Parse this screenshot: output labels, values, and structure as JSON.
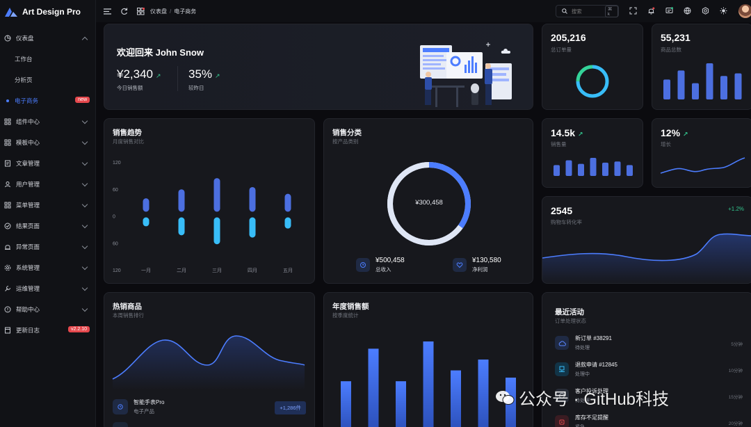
{
  "app": {
    "name": "Art Design Pro"
  },
  "sidebar": {
    "items": [
      {
        "label": "仪表盘",
        "icon": "dashboard-icon"
      },
      {
        "label": "工作台"
      },
      {
        "label": "分析页"
      },
      {
        "label": "电子商务",
        "badge": "new"
      },
      {
        "label": "组件中心",
        "icon": "components-icon"
      },
      {
        "label": "模板中心",
        "icon": "template-icon"
      },
      {
        "label": "文章管理",
        "icon": "article-icon"
      },
      {
        "label": "用户管理",
        "icon": "user-icon"
      },
      {
        "label": "菜单管理",
        "icon": "menu-icon"
      },
      {
        "label": "结果页面",
        "icon": "result-icon"
      },
      {
        "label": "异常页面",
        "icon": "warning-icon"
      },
      {
        "label": "系统管理",
        "icon": "settings-icon"
      },
      {
        "label": "运维管理",
        "icon": "wrench-icon"
      },
      {
        "label": "帮助中心",
        "icon": "help-icon"
      },
      {
        "label": "更新日志",
        "icon": "log-icon",
        "badge": "v2.2.10"
      }
    ]
  },
  "topbar": {
    "breadcrumb": [
      "仪表盘",
      "电子商务"
    ],
    "search": {
      "placeholder": "搜索",
      "shortcut": "⌘ k"
    }
  },
  "welcome": {
    "greeting": "欢迎回来 John Snow",
    "stats": [
      {
        "value": "¥2,340",
        "label": "今日销售额"
      },
      {
        "value": "35%",
        "label": "较昨日"
      }
    ]
  },
  "kpis": {
    "orders": {
      "value": "205,216",
      "label": "总订单量"
    },
    "products": {
      "value": "55,231",
      "label": "商品总数"
    },
    "sales": {
      "value": "14.5k",
      "label": "销售量"
    },
    "growth": {
      "value": "12%",
      "label": "增长"
    },
    "cart": {
      "value": "2545",
      "label": "购物车转化率",
      "change": "+1.2%"
    }
  },
  "sales_trend": {
    "title": "销售趋势",
    "subtitle": "月度销售对比"
  },
  "category": {
    "title": "销售分类",
    "subtitle": "按产品类别",
    "center": "¥300,458",
    "items": [
      {
        "value": "¥500,458",
        "label": "总收入"
      },
      {
        "value": "¥130,580",
        "label": "净利润"
      }
    ]
  },
  "hot": {
    "title": "热销商品",
    "subtitle": "本周销售排行",
    "products": [
      {
        "name": "智能手表Pro",
        "category": "电子产品",
        "sold": "+1,286件"
      }
    ]
  },
  "annual": {
    "title": "年度销售额",
    "subtitle": "按季度统计"
  },
  "activity": {
    "title": "最近活动",
    "subtitle": "订单处理状态",
    "items": [
      {
        "title": "新订单 #38291",
        "status": "待处理",
        "time": "5分钟"
      },
      {
        "title": "退款申请 #12845",
        "status": "处理中",
        "time": "10分钟"
      },
      {
        "title": "客户投诉处理",
        "status": "待处理",
        "time": "15分钟"
      },
      {
        "title": "库存不足提醒",
        "status": "紧急",
        "time": "20分钟"
      }
    ]
  },
  "watermark": "公众号 · GitHub科技",
  "colors": {
    "accent": "#4c7dff",
    "cyan": "#38bdf8",
    "success": "#33c48d",
    "danger": "#e5484d"
  },
  "chart_data": [
    {
      "type": "bar",
      "title": "销售趋势",
      "categories": [
        "一月",
        "二月",
        "三月",
        "四月",
        "五月"
      ],
      "ylim": [
        -120,
        120
      ],
      "yticks": [
        "120",
        "60",
        "0",
        "60",
        "120"
      ],
      "series": [
        {
          "values": [
            30,
            50,
            75,
            55,
            40
          ]
        },
        {
          "values": [
            -20,
            -40,
            -60,
            -45,
            -25
          ]
        }
      ]
    },
    {
      "type": "pie",
      "title": "销售分类",
      "series": [
        {
          "values": [
            35,
            65
          ]
        }
      ]
    },
    {
      "type": "bar",
      "title": "年度销售额",
      "series": [
        {
          "values": [
            56,
            92,
            56,
            100,
            68,
            80,
            60
          ]
        }
      ]
    },
    {
      "type": "bar",
      "title": "商品总数",
      "series": [
        {
          "values": [
            55,
            80,
            45,
            100,
            65,
            72
          ]
        }
      ]
    },
    {
      "type": "bar",
      "title": "销售量",
      "series": [
        {
          "values": [
            45,
            65,
            50,
            75,
            55,
            60,
            45
          ]
        }
      ]
    },
    {
      "type": "pie",
      "title": "总订单量",
      "series": [
        {
          "values": [
            75,
            25
          ]
        }
      ]
    }
  ]
}
